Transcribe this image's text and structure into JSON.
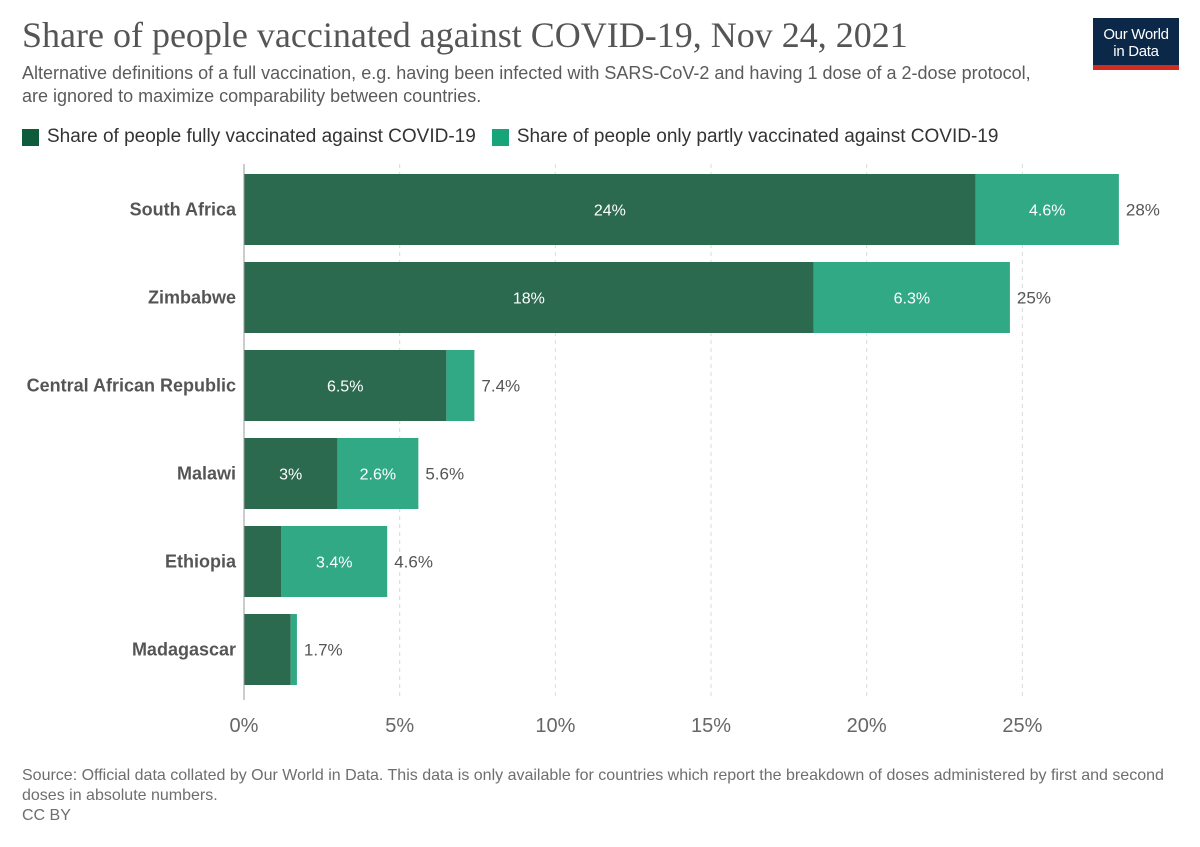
{
  "header": {
    "title": "Share of people vaccinated against COVID-19, Nov 24, 2021",
    "subtitle": "Alternative definitions of a full vaccination, e.g. having been infected with SARS-CoV-2 and having 1 dose of a 2-dose protocol, are ignored to maximize comparability between countries.",
    "logo_line1": "Our World",
    "logo_line2": "in Data"
  },
  "colors": {
    "fully": "#2b6a4e",
    "partly": "#31a984",
    "legend_fully": "#0f5c3c",
    "legend_partly": "#17a479",
    "logo_bg": "#0b2848",
    "logo_bar": "#d42b21"
  },
  "chart_data": {
    "type": "bar",
    "orientation": "horizontal",
    "stacked": true,
    "title": "Share of people vaccinated against COVID-19, Nov 24, 2021",
    "categories": [
      "South Africa",
      "Zimbabwe",
      "Central African Republic",
      "Malawi",
      "Ethiopia",
      "Madagascar"
    ],
    "series": [
      {
        "name": "Share of people fully vaccinated against COVID-19",
        "values": [
          23.5,
          18.3,
          6.5,
          3.0,
          1.2,
          1.5
        ],
        "labels": [
          "24%",
          "18%",
          "6.5%",
          "3%",
          "",
          ""
        ]
      },
      {
        "name": "Share of people only partly vaccinated against COVID-19",
        "values": [
          4.6,
          6.3,
          0.9,
          2.6,
          3.4,
          0.2
        ],
        "labels": [
          "4.6%",
          "6.3%",
          "",
          "2.6%",
          "3.4%",
          ""
        ]
      }
    ],
    "totals": [
      "28%",
      "25%",
      "7.4%",
      "5.6%",
      "4.6%",
      "1.7%"
    ],
    "xlim": [
      0,
      28.2
    ],
    "xticks": [
      0,
      5,
      10,
      15,
      20,
      25
    ],
    "xtick_labels": [
      "0%",
      "5%",
      "10%",
      "15%",
      "20%",
      "25%"
    ],
    "grid": "vertical-dashed",
    "legend": "top-left"
  },
  "footer": {
    "source": "Source: Official data collated by Our World in Data. This data is only available for countries which report the breakdown of doses administered by first and second doses in absolute numbers.",
    "license": "CC BY"
  }
}
